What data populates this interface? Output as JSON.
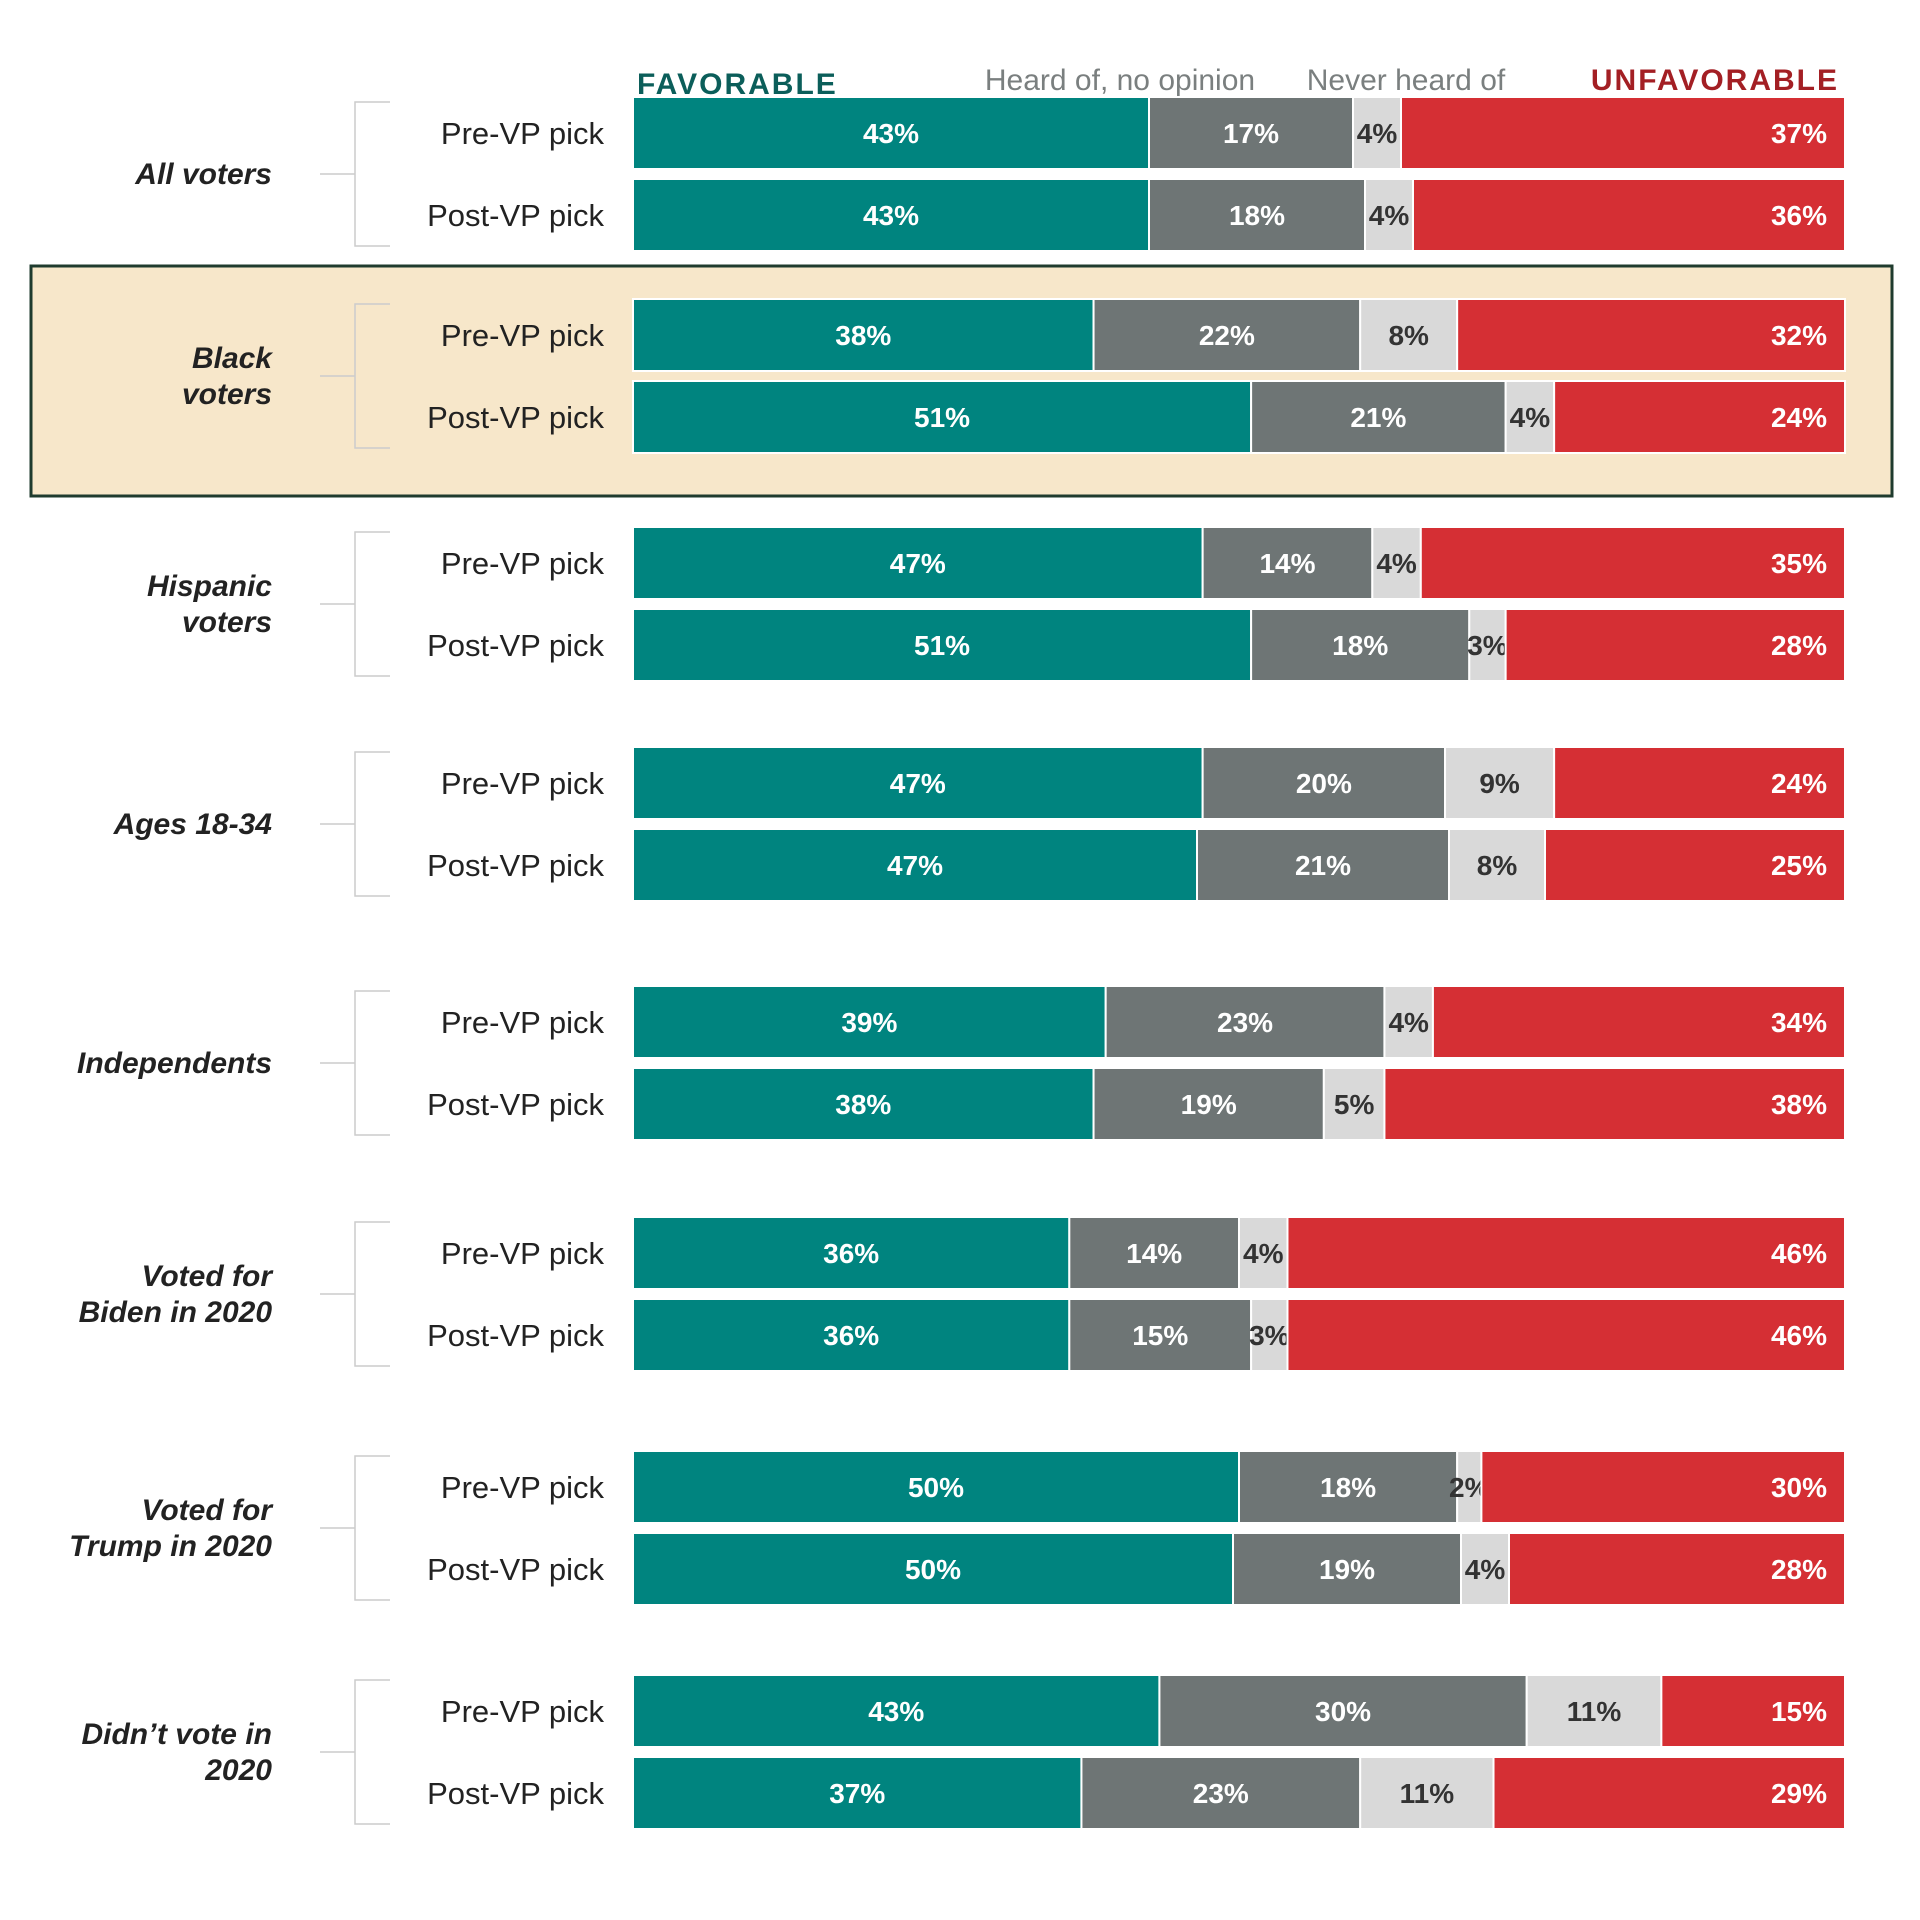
{
  "colors": {
    "favorable": "#00847f",
    "no_opinion": "#6e7575",
    "never_heard": "#d9d9d9",
    "unfavorable": "#d52f34",
    "favorable_legend": "#0b5e5a",
    "unfavorable_legend": "#a31f24",
    "no_opinion_legend": "#7a7f7f",
    "highlight_fill": "#f7e7ca",
    "highlight_border": "#1f3b2e"
  },
  "chart_data": {
    "type": "bar",
    "orientation": "horizontal",
    "stacked": true,
    "xlim": [
      0,
      100
    ],
    "legend": [
      {
        "key": "favorable",
        "label": "FAVORABLE"
      },
      {
        "key": "no_opinion",
        "label": "Heard of, no opinion"
      },
      {
        "key": "never_heard",
        "label": "Never heard of"
      },
      {
        "key": "unfavorable",
        "label": "UNFAVORABLE"
      }
    ],
    "legend_position": "top",
    "highlighted_group": "Black voters",
    "groups": [
      {
        "label_lines": [
          "All voters"
        ],
        "rows": [
          {
            "label": "Pre-VP pick",
            "values": [
              43,
              17,
              4,
              37
            ],
            "labels": [
              "43%",
              "17%",
              "4%",
              "37%"
            ]
          },
          {
            "label": "Post-VP pick",
            "values": [
              43,
              18,
              4,
              36
            ],
            "labels": [
              "43%",
              "18%",
              "4%",
              "36%"
            ]
          }
        ]
      },
      {
        "label_lines": [
          "Black",
          "voters"
        ],
        "highlight": true,
        "rows": [
          {
            "label": "Pre-VP pick",
            "values": [
              38,
              22,
              8,
              32
            ],
            "labels": [
              "38%",
              "22%",
              "8%",
              "32%"
            ]
          },
          {
            "label": "Post-VP pick",
            "values": [
              51,
              21,
              4,
              24
            ],
            "labels": [
              "51%",
              "21%",
              "4%",
              "24%"
            ]
          }
        ]
      },
      {
        "label_lines": [
          "Hispanic",
          "voters"
        ],
        "rows": [
          {
            "label": "Pre-VP pick",
            "values": [
              47,
              14,
              4,
              35
            ],
            "labels": [
              "47%",
              "14%",
              "4%",
              "35%"
            ]
          },
          {
            "label": "Post-VP pick",
            "values": [
              51,
              18,
              3,
              28
            ],
            "labels": [
              "51%",
              "18%",
              "3%",
              "28%"
            ]
          }
        ]
      },
      {
        "label_lines": [
          "Ages 18-34"
        ],
        "rows": [
          {
            "label": "Pre-VP pick",
            "values": [
              47,
              20,
              9,
              24
            ],
            "labels": [
              "47%",
              "20%",
              "9%",
              "24%"
            ]
          },
          {
            "label": "Post-VP pick",
            "values": [
              47,
              21,
              8,
              25
            ],
            "labels": [
              "47%",
              "21%",
              "8%",
              "25%"
            ]
          }
        ]
      },
      {
        "label_lines": [
          "Independents"
        ],
        "rows": [
          {
            "label": "Pre-VP pick",
            "values": [
              39,
              23,
              4,
              34
            ],
            "labels": [
              "39%",
              "23%",
              "4%",
              "34%"
            ]
          },
          {
            "label": "Post-VP pick",
            "values": [
              38,
              19,
              5,
              38
            ],
            "labels": [
              "38%",
              "19%",
              "5%",
              "38%"
            ]
          }
        ]
      },
      {
        "label_lines": [
          "Voted for",
          "Biden in 2020"
        ],
        "rows": [
          {
            "label": "Pre-VP pick",
            "values": [
              36,
              14,
              4,
              46
            ],
            "labels": [
              "36%",
              "14%",
              "4%",
              "46%"
            ]
          },
          {
            "label": "Post-VP pick",
            "values": [
              36,
              15,
              3,
              46
            ],
            "labels": [
              "36%",
              "15%",
              "3%",
              "46%"
            ]
          }
        ]
      },
      {
        "label_lines": [
          "Voted for",
          "Trump in 2020"
        ],
        "rows": [
          {
            "label": "Pre-VP pick",
            "values": [
              50,
              18,
              2,
              30
            ],
            "labels": [
              "50%",
              "18%",
              "2%",
              "30%"
            ]
          },
          {
            "label": "Post-VP pick",
            "values": [
              50,
              19,
              4,
              28
            ],
            "labels": [
              "50%",
              "19%",
              "4%",
              "28%"
            ]
          }
        ]
      },
      {
        "label_lines": [
          "Didn’t vote in",
          "2020"
        ],
        "rows": [
          {
            "label": "Pre-VP pick",
            "values": [
              43,
              30,
              11,
              15
            ],
            "labels": [
              "43%",
              "30%",
              "11%",
              "15%"
            ]
          },
          {
            "label": "Post-VP pick",
            "values": [
              37,
              23,
              11,
              29
            ],
            "labels": [
              "37%",
              "23%",
              "11%",
              "29%"
            ]
          }
        ]
      }
    ]
  }
}
